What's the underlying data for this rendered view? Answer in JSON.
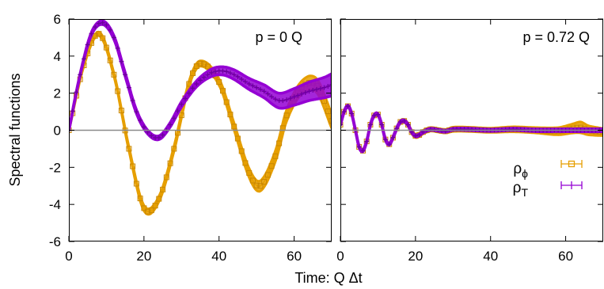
{
  "chart_data": {
    "type": "line",
    "xlabel": "Time:  Q Δt",
    "ylabel": "Spectral functions",
    "xlim": [
      0,
      70
    ],
    "ylim": [
      -6,
      6
    ],
    "xticks": [
      0,
      20,
      40,
      60
    ],
    "yticks": [
      -6,
      -4,
      -2,
      0,
      2,
      4,
      6
    ],
    "grid": false,
    "zero_line": true,
    "legend_position": "bottom-right of right panel",
    "series_colors": {
      "rho_phi": "#e69f00",
      "rho_T": "#9400d3"
    },
    "legend": [
      {
        "base": "ρ",
        "sub": "ϕ",
        "marker": "open-square",
        "color": "#e69f00"
      },
      {
        "base": "ρ",
        "sub": "T",
        "marker": "plus",
        "color": "#9400d3"
      }
    ],
    "panels": [
      {
        "label": "p = 0 Q",
        "series": [
          {
            "key": "rho_phi",
            "x": [
              0,
              4,
              8,
              12,
              16,
              20,
              24,
              28,
              32,
              35,
              40,
              44,
              48,
              51,
              55,
              58,
              62,
              66,
              70
            ],
            "y": [
              0,
              3.5,
              5.2,
              3.0,
              -1.0,
              -4.2,
              -3.7,
              -1.0,
              2.5,
              3.6,
              2.6,
              0.2,
              -2.3,
              -3.0,
              -1.4,
              0.8,
              2.3,
              2.4,
              0.5
            ],
            "err": [
              0.02,
              0.05,
              0.1,
              0.1,
              0.12,
              0.15,
              0.15,
              0.15,
              0.15,
              0.15,
              0.18,
              0.2,
              0.25,
              0.28,
              0.3,
              0.32,
              0.35,
              0.38,
              0.4
            ]
          },
          {
            "key": "rho_T",
            "x": [
              0,
              3,
              6,
              9,
              12,
              15,
              18,
              21,
              24,
              27,
              30,
              34,
              38,
              41,
              44,
              48,
              52,
              56,
              60,
              64,
              68,
              70
            ],
            "y": [
              0,
              3.0,
              5.2,
              5.8,
              5.0,
              3.0,
              1.0,
              -0.1,
              -0.4,
              0.3,
              1.4,
              2.5,
              3.1,
              3.2,
              3.0,
              2.5,
              2.1,
              1.6,
              1.8,
              2.1,
              2.3,
              2.45
            ],
            "err": [
              0.02,
              0.05,
              0.08,
              0.1,
              0.1,
              0.1,
              0.1,
              0.1,
              0.1,
              0.12,
              0.14,
              0.16,
              0.2,
              0.22,
              0.26,
              0.3,
              0.35,
              0.4,
              0.45,
              0.5,
              0.55,
              0.6
            ]
          }
        ]
      },
      {
        "label": "p = 0.72 Q",
        "series": [
          {
            "key": "rho_phi",
            "x": [
              0,
              1,
              2,
              3,
              4,
              5,
              6,
              7,
              8,
              9,
              10,
              11,
              12,
              13,
              14,
              15,
              16,
              17,
              18,
              19,
              20,
              21,
              22,
              24,
              26,
              28,
              30,
              34,
              40,
              46,
              52,
              58,
              62,
              64,
              66,
              70
            ],
            "y": [
              0.3,
              1.0,
              1.3,
              0.9,
              0.0,
              -0.9,
              -1.1,
              -0.6,
              0.3,
              0.8,
              0.85,
              0.3,
              -0.5,
              -0.75,
              -0.4,
              0.1,
              0.45,
              0.5,
              0.3,
              -0.1,
              -0.3,
              -0.25,
              -0.1,
              0.05,
              0.0,
              -0.05,
              0.05,
              0.05,
              0.0,
              0.05,
              0.0,
              -0.05,
              0.1,
              0.15,
              0.0,
              -0.1
            ],
            "err": [
              0.03,
              0.03,
              0.03,
              0.03,
              0.03,
              0.04,
              0.04,
              0.04,
              0.05,
              0.05,
              0.05,
              0.06,
              0.06,
              0.06,
              0.07,
              0.07,
              0.08,
              0.08,
              0.08,
              0.09,
              0.1,
              0.1,
              0.1,
              0.1,
              0.1,
              0.1,
              0.12,
              0.12,
              0.12,
              0.14,
              0.15,
              0.2,
              0.25,
              0.3,
              0.25,
              0.2
            ]
          },
          {
            "key": "rho_T",
            "x": [
              0,
              1,
              2,
              3,
              4,
              5,
              6,
              7,
              8,
              9,
              10,
              11,
              12,
              13,
              14,
              15,
              16,
              17,
              18,
              19,
              20,
              21,
              22,
              24,
              26,
              28,
              30,
              34,
              40,
              46,
              52,
              58,
              64,
              70
            ],
            "y": [
              0.3,
              1.0,
              1.3,
              0.9,
              0.0,
              -0.9,
              -1.1,
              -0.6,
              0.3,
              0.8,
              0.85,
              0.3,
              -0.5,
              -0.75,
              -0.4,
              0.1,
              0.45,
              0.5,
              0.3,
              -0.1,
              -0.3,
              -0.25,
              -0.1,
              0.05,
              0.0,
              -0.05,
              0.05,
              0.05,
              0.0,
              0.05,
              0.0,
              0.0,
              0.0,
              0.0
            ],
            "err": [
              0.02,
              0.02,
              0.02,
              0.02,
              0.02,
              0.02,
              0.02,
              0.03,
              0.03,
              0.03,
              0.03,
              0.03,
              0.03,
              0.03,
              0.04,
              0.04,
              0.04,
              0.04,
              0.04,
              0.04,
              0.05,
              0.05,
              0.05,
              0.05,
              0.05,
              0.05,
              0.05,
              0.06,
              0.06,
              0.06,
              0.07,
              0.07,
              0.08,
              0.08
            ]
          }
        ]
      }
    ]
  }
}
